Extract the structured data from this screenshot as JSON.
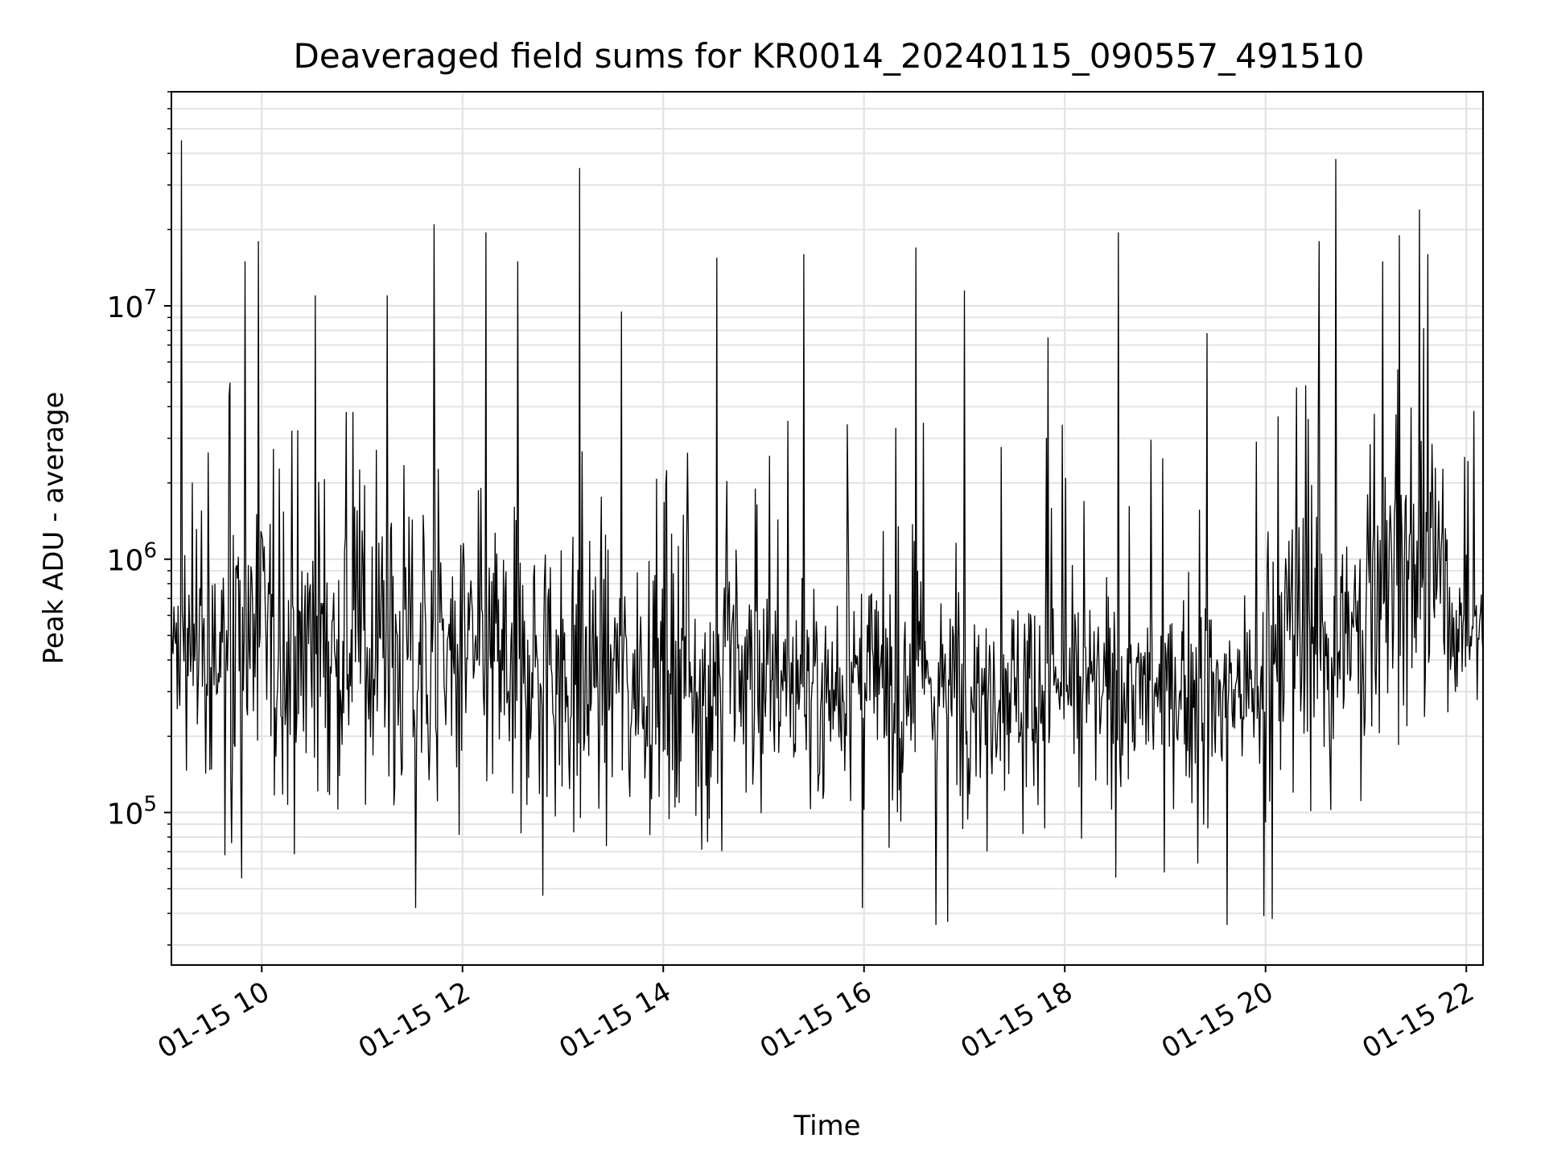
{
  "chart_data": {
    "type": "line",
    "title": "Deaveraged field sums for KR0014_20240115_090557_491510",
    "xlabel": "Time",
    "ylabel": "Peak ADU - average",
    "yscale": "log",
    "ylim": [
      25000,
      70000000
    ],
    "xlim": [
      "2024-01-15 09:06",
      "2024-01-15 22:10"
    ],
    "grid": true,
    "line_color": "#000000",
    "x_ticks": [
      {
        "time": "2024-01-15 10:00",
        "label": "01-15 10"
      },
      {
        "time": "2024-01-15 12:00",
        "label": "01-15 12"
      },
      {
        "time": "2024-01-15 14:00",
        "label": "01-15 14"
      },
      {
        "time": "2024-01-15 16:00",
        "label": "01-15 16"
      },
      {
        "time": "2024-01-15 18:00",
        "label": "01-15 18"
      },
      {
        "time": "2024-01-15 20:00",
        "label": "01-15 20"
      },
      {
        "time": "2024-01-15 22:00",
        "label": "01-15 22"
      }
    ],
    "y_ticks": [
      {
        "value": 100000,
        "base": "10",
        "exp": "5"
      },
      {
        "value": 1000000,
        "base": "10",
        "exp": "6"
      },
      {
        "value": 10000000,
        "base": "10",
        "exp": "7"
      }
    ],
    "sample_interval_minutes": 0.5,
    "series": [
      {
        "x_start": "2024-01-15 09:06",
        "x_end": "2024-01-15 22:10",
        "segments": [
          {
            "from": "2024-01-15 09:06",
            "to": "2024-01-15 09:20",
            "median": 420000,
            "spread_decades": 0.22
          },
          {
            "from": "2024-01-15 09:20",
            "to": "2024-01-15 11:30",
            "median": 480000,
            "spread_decades": 0.3
          },
          {
            "from": "2024-01-15 11:30",
            "to": "2024-01-15 13:00",
            "median": 400000,
            "spread_decades": 0.28
          },
          {
            "from": "2024-01-15 13:00",
            "to": "2024-01-15 15:00",
            "median": 360000,
            "spread_decades": 0.27
          },
          {
            "from": "2024-01-15 15:00",
            "to": "2024-01-15 17:00",
            "median": 320000,
            "spread_decades": 0.22
          },
          {
            "from": "2024-01-15 17:00",
            "to": "2024-01-15 18:00",
            "median": 320000,
            "spread_decades": 0.2
          },
          {
            "from": "2024-01-15 18:00",
            "to": "2024-01-15 20:00",
            "median": 300000,
            "spread_decades": 0.18
          },
          {
            "from": "2024-01-15 20:00",
            "to": "2024-01-15 21:00",
            "median": 480000,
            "spread_decades": 0.27
          },
          {
            "from": "2024-01-15 21:00",
            "to": "2024-01-15 21:50",
            "median": 900000,
            "spread_decades": 0.3
          },
          {
            "from": "2024-01-15 21:50",
            "to": "2024-01-15 22:10",
            "median": 520000,
            "spread_decades": 0.12
          }
        ],
        "peaks": [
          {
            "time": "2024-01-15 09:12",
            "value": 45000000
          },
          {
            "time": "2024-01-15 09:50",
            "value": 15000000
          },
          {
            "time": "2024-01-15 09:58",
            "value": 18000000
          },
          {
            "time": "2024-01-15 10:32",
            "value": 11000000
          },
          {
            "time": "2024-01-15 11:15",
            "value": 11000000
          },
          {
            "time": "2024-01-15 11:43",
            "value": 21000000
          },
          {
            "time": "2024-01-15 12:14",
            "value": 19500000
          },
          {
            "time": "2024-01-15 12:33",
            "value": 15000000
          },
          {
            "time": "2024-01-15 13:10",
            "value": 35000000
          },
          {
            "time": "2024-01-15 13:35",
            "value": 9500000
          },
          {
            "time": "2024-01-15 14:32",
            "value": 15500000
          },
          {
            "time": "2024-01-15 15:24",
            "value": 16000000
          },
          {
            "time": "2024-01-15 16:31",
            "value": 17000000
          },
          {
            "time": "2024-01-15 17:00",
            "value": 11500000
          },
          {
            "time": "2024-01-15 17:50",
            "value": 7500000
          },
          {
            "time": "2024-01-15 18:32",
            "value": 19500000
          },
          {
            "time": "2024-01-15 19:25",
            "value": 7800000
          },
          {
            "time": "2024-01-15 20:32",
            "value": 18000000
          },
          {
            "time": "2024-01-15 20:42",
            "value": 38000000
          },
          {
            "time": "2024-01-15 21:20",
            "value": 19000000
          },
          {
            "time": "2024-01-15 21:32",
            "value": 24000000
          },
          {
            "time": "2024-01-15 21:10",
            "value": 15000000
          },
          {
            "time": "2024-01-15 21:37",
            "value": 16000000
          }
        ],
        "dips": [
          {
            "time": "2024-01-15 09:48",
            "value": 55000
          },
          {
            "time": "2024-01-15 11:32",
            "value": 42000
          },
          {
            "time": "2024-01-15 12:48",
            "value": 47000
          },
          {
            "time": "2024-01-15 15:59",
            "value": 42000
          },
          {
            "time": "2024-01-15 16:43",
            "value": 36000
          },
          {
            "time": "2024-01-15 16:50",
            "value": 37000
          },
          {
            "time": "2024-01-15 19:37",
            "value": 36000
          },
          {
            "time": "2024-01-15 19:59",
            "value": 39000
          },
          {
            "time": "2024-01-15 20:04",
            "value": 38000
          }
        ]
      }
    ]
  }
}
